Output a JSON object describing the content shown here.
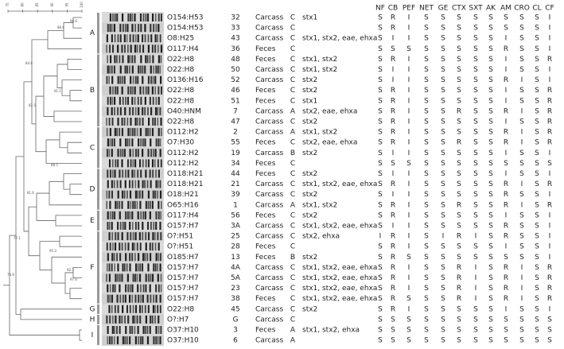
{
  "scale_ticks": [
    75,
    80,
    85,
    90,
    95,
    100
  ],
  "node_labels": [
    "96.6",
    "86.6",
    "84.8",
    "91.1",
    "82.5",
    "81.6",
    "88.5",
    "92.3",
    "97.6",
    "95.3",
    "77.1",
    "74.9"
  ],
  "clusters": [
    "A",
    "B",
    "C",
    "D",
    "E",
    "F",
    "G",
    "H",
    "I"
  ],
  "columns": [
    "NF",
    "CB",
    "PEF",
    "NET",
    "GE",
    "CTX",
    "SXT",
    "AK",
    "AM",
    "CRO",
    "CL",
    "CF"
  ],
  "rows": [
    {
      "serotype": "O154:H53",
      "isolate": "32",
      "source": "Carcass",
      "category": "C",
      "genes": "stx1",
      "profile": [
        "S",
        "R",
        "I",
        "S",
        "S",
        "S",
        "S",
        "S",
        "S",
        "S",
        "S",
        "I"
      ]
    },
    {
      "serotype": "O154:H53",
      "isolate": "33",
      "source": "Carcass",
      "category": "C",
      "profile": [
        "S",
        "R",
        "I",
        "S",
        "S",
        "S",
        "S",
        "S",
        "S",
        "S",
        "S",
        "I"
      ]
    },
    {
      "serotype": "O8:H25",
      "isolate": "43",
      "source": "Carcass",
      "category": "C",
      "genes": "stx1, stx2, eae, ehxa",
      "profile": [
        "S",
        "I",
        "I",
        "S",
        "S",
        "S",
        "S",
        "S",
        "I",
        "S",
        "S",
        "I"
      ]
    },
    {
      "serotype": "O117:H4",
      "isolate": "36",
      "source": "Feces",
      "category": "C",
      "profile": [
        "S",
        "S",
        "S",
        "S",
        "S",
        "S",
        "S",
        "S",
        "R",
        "S",
        "S",
        "I"
      ]
    },
    {
      "serotype": "O22:H8",
      "isolate": "48",
      "source": "Feces",
      "category": "C",
      "genes": "stx1, stx2",
      "profile": [
        "S",
        "R",
        "I",
        "S",
        "S",
        "S",
        "S",
        "S",
        "I",
        "S",
        "S",
        "R"
      ]
    },
    {
      "serotype": "O22:H8",
      "isolate": "50",
      "source": "Carcass",
      "category": "C",
      "genes": "stx1, stx2",
      "profile": [
        "S",
        "I",
        "I",
        "S",
        "S",
        "S",
        "S",
        "S",
        "I",
        "S",
        "S",
        "I"
      ]
    },
    {
      "serotype": "O136:H16",
      "isolate": "52",
      "source": "Carcass",
      "category": "C",
      "genes": "stx2",
      "profile": [
        "S",
        "I",
        "I",
        "S",
        "S",
        "S",
        "S",
        "S",
        "R",
        "I",
        "S",
        "I"
      ]
    },
    {
      "serotype": "O22:H8",
      "isolate": "46",
      "source": "Feces",
      "category": "C",
      "genes": "stx2",
      "profile": [
        "S",
        "R",
        "I",
        "S",
        "S",
        "S",
        "S",
        "S",
        "I",
        "S",
        "S",
        "R"
      ]
    },
    {
      "serotype": "O22:H8",
      "isolate": "51",
      "source": "Feces",
      "category": "C",
      "genes": "stx1",
      "profile": [
        "S",
        "R",
        "I",
        "S",
        "S",
        "S",
        "S",
        "S",
        "I",
        "S",
        "S",
        "R"
      ]
    },
    {
      "serotype": "O40:HNM",
      "isolate": "7",
      "source": "Carcass",
      "category": "A",
      "genes": "stx2, eae, ehxa",
      "profile": [
        "S",
        "R",
        "I",
        "S",
        "S",
        "R",
        "S",
        "S",
        "R",
        "I",
        "S",
        "R"
      ]
    },
    {
      "serotype": "O22:H8",
      "isolate": "47",
      "source": "Carcass",
      "category": "C",
      "genes": "stx2",
      "profile": [
        "S",
        "R",
        "I",
        "S",
        "S",
        "S",
        "S",
        "S",
        "I",
        "S",
        "S",
        "R"
      ]
    },
    {
      "serotype": "O112:H2",
      "isolate": "2",
      "source": "Carcass",
      "category": "A",
      "genes": "stx1, stx2",
      "profile": [
        "S",
        "R",
        "I",
        "S",
        "S",
        "S",
        "S",
        "S",
        "R",
        "I",
        "S",
        "R"
      ]
    },
    {
      "serotype": "O7:H30",
      "isolate": "55",
      "source": "Feces",
      "category": "C",
      "genes": "stx2, eae, ehxa",
      "profile": [
        "S",
        "R",
        "I",
        "S",
        "S",
        "R",
        "S",
        "S",
        "R",
        "I",
        "S",
        "R"
      ]
    },
    {
      "serotype": "O112:H2",
      "isolate": "19",
      "source": "Carcass",
      "category": "B",
      "genes": "stx2",
      "profile": [
        "S",
        "I",
        "I",
        "S",
        "S",
        "S",
        "S",
        "S",
        "I",
        "S",
        "S",
        "I"
      ]
    },
    {
      "serotype": "O112:H2",
      "isolate": "34",
      "source": "Feces",
      "category": "C",
      "profile": [
        "S",
        "S",
        "S",
        "S",
        "S",
        "S",
        "S",
        "S",
        "S",
        "S",
        "S",
        "S"
      ]
    },
    {
      "serotype": "O118:H21",
      "isolate": "44",
      "source": "Feces",
      "category": "C",
      "genes": "stx2",
      "profile": [
        "S",
        "I",
        "I",
        "S",
        "S",
        "S",
        "S",
        "S",
        "I",
        "S",
        "S",
        "I"
      ]
    },
    {
      "serotype": "O118:H21",
      "isolate": "21",
      "source": "Carcass",
      "category": "C",
      "genes": "stx1, stx2, eae, ehxa",
      "profile": [
        "S",
        "R",
        "I",
        "S",
        "S",
        "S",
        "S",
        "S",
        "R",
        "I",
        "S",
        "R"
      ]
    },
    {
      "serotype": "O18:H21",
      "isolate": "39",
      "source": "Carcass",
      "category": "C",
      "genes": "stx2",
      "profile": [
        "S",
        "I",
        "I",
        "S",
        "S",
        "S",
        "S",
        "S",
        "R",
        "S",
        "S",
        "I"
      ]
    },
    {
      "serotype": "O65:H16",
      "isolate": "1",
      "source": "Carcass",
      "category": "A",
      "genes": "stx1, stx2",
      "profile": [
        "S",
        "R",
        "I",
        "S",
        "S",
        "R",
        "S",
        "S",
        "R",
        "I",
        "S",
        "R"
      ]
    },
    {
      "serotype": "O117:H4",
      "isolate": "56",
      "source": "Feces",
      "category": "C",
      "genes": "stx2",
      "profile": [
        "S",
        "R",
        "I",
        "S",
        "S",
        "S",
        "S",
        "S",
        "I",
        "S",
        "S",
        "I"
      ]
    },
    {
      "serotype": "O157:H7",
      "isolate": "3A",
      "source": "Carcass",
      "category": "C",
      "genes": "stx1, stx2, eae, ehxa",
      "profile": [
        "S",
        "I",
        "I",
        "S",
        "S",
        "S",
        "S",
        "S",
        "R",
        "S",
        "S",
        "I"
      ]
    },
    {
      "serotype": "O?:H51",
      "isolate": "25",
      "source": "Carcass",
      "category": "C",
      "genes": "stx2, ehxa",
      "profile": [
        "I",
        "R",
        "I",
        "S",
        "I",
        "R",
        "I",
        "S",
        "R",
        "S",
        "S",
        "I"
      ]
    },
    {
      "serotype": "O?:H51",
      "isolate": "28",
      "source": "Feces",
      "category": "C",
      "profile": [
        "S",
        "R",
        "I",
        "S",
        "S",
        "S",
        "S",
        "S",
        "I",
        "S",
        "S",
        "I"
      ]
    },
    {
      "serotype": "O185:H7",
      "isolate": "13",
      "source": "Feces",
      "category": "B",
      "genes": "stx2",
      "profile": [
        "S",
        "R",
        "S",
        "S",
        "S",
        "S",
        "S",
        "S",
        "S",
        "S",
        "S",
        "I"
      ]
    },
    {
      "serotype": "O157:H7",
      "isolate": "4A",
      "source": "Carcass",
      "category": "C",
      "genes": "stx1, stx2, eae, ehxa",
      "profile": [
        "S",
        "R",
        "I",
        "S",
        "S",
        "R",
        "I",
        "S",
        "R",
        "I",
        "S",
        "R"
      ]
    },
    {
      "serotype": "O157:H7",
      "isolate": "5A",
      "source": "Carcass",
      "category": "C",
      "genes": "stx1, stx2, eae, ehxa",
      "profile": [
        "S",
        "R",
        "I",
        "S",
        "S",
        "R",
        "I",
        "S",
        "R",
        "I",
        "S",
        "R"
      ]
    },
    {
      "serotype": "O157:H7",
      "isolate": "23",
      "source": "Carcass",
      "category": "C",
      "genes": "stx1, stx2, eae, ehxa",
      "profile": [
        "S",
        "R",
        "I",
        "S",
        "S",
        "R",
        "I",
        "S",
        "R",
        "I",
        "S",
        "R"
      ]
    },
    {
      "serotype": "O157:H7",
      "isolate": "38",
      "source": "Feces",
      "category": "C",
      "genes": "stx1, stx2, eae, ehxa",
      "profile": [
        "S",
        "R",
        "S",
        "S",
        "S",
        "R",
        "I",
        "S",
        "R",
        "I",
        "S",
        "R"
      ]
    },
    {
      "serotype": "O22:H8",
      "isolate": "45",
      "source": "Carcass",
      "category": "C",
      "genes": "stx2",
      "profile": [
        "S",
        "R",
        "I",
        "S",
        "S",
        "S",
        "S",
        "S",
        "I",
        "S",
        "S",
        "I"
      ]
    },
    {
      "serotype": "O?:H7",
      "isolate": "G",
      "source": "Carcass",
      "category": "C",
      "profile": [
        "S",
        "S",
        "S",
        "S",
        "S",
        "S",
        "S",
        "S",
        "S",
        "S",
        "S",
        "S"
      ]
    },
    {
      "serotype": "O37:H10",
      "isolate": "3",
      "source": "Feces",
      "category": "A",
      "genes": "stx1, stx2, ehxa",
      "profile": [
        "S",
        "S",
        "S",
        "S",
        "S",
        "S",
        "S",
        "S",
        "S",
        "S",
        "S",
        "S"
      ]
    },
    {
      "serotype": "O37:H10",
      "isolate": "6",
      "source": "Carcass",
      "category": "A",
      "profile": [
        "S",
        "S",
        "S",
        "S",
        "S",
        "S",
        "S",
        "S",
        "S",
        "S",
        "S",
        "S"
      ]
    }
  ]
}
